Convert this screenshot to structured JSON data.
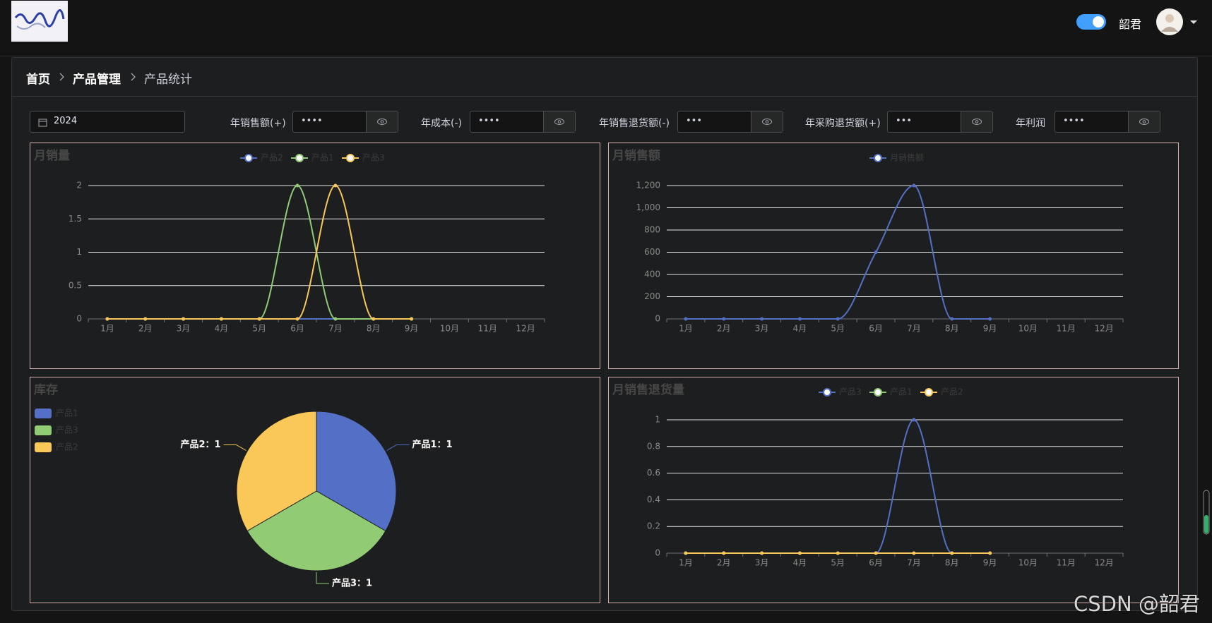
{
  "header": {
    "user": "韶君"
  },
  "breadcrumb": [
    "首页",
    "产品管理",
    "产品统计"
  ],
  "filters": {
    "year": "2024",
    "fields": [
      {
        "label": "年销售额(+)",
        "value": "••••"
      },
      {
        "label": "年成本(-)",
        "value": "••••"
      },
      {
        "label": "年销售退货额(-)",
        "value": "•••"
      },
      {
        "label": "年采购退货额(+)",
        "value": "•••"
      },
      {
        "label": "年利润",
        "value": "••••"
      }
    ]
  },
  "watermark": "CSDN @韶君",
  "chart_data": [
    {
      "type": "line",
      "title": "月销量",
      "smooth": true,
      "grid": true,
      "categories": [
        "1月",
        "2月",
        "3月",
        "4月",
        "5月",
        "6月",
        "7月",
        "8月",
        "9月",
        "10月",
        "11月",
        "12月"
      ],
      "series": [
        {
          "name": "产品2",
          "color": "#5470c6",
          "values": [
            0,
            0,
            0,
            0,
            0,
            0,
            0,
            0,
            0,
            null,
            null,
            null
          ]
        },
        {
          "name": "产品1",
          "color": "#91cc75",
          "values": [
            0,
            0,
            0,
            0,
            0,
            2,
            0,
            0,
            0,
            null,
            null,
            null
          ]
        },
        {
          "name": "产品3",
          "color": "#fac858",
          "values": [
            0,
            0,
            0,
            0,
            0,
            0,
            2,
            0,
            0,
            null,
            null,
            null
          ]
        }
      ],
      "ylim": [
        0,
        2
      ],
      "yticks": [
        0,
        0.5,
        1,
        1.5,
        2
      ]
    },
    {
      "type": "line",
      "title": "月销售额",
      "smooth": true,
      "grid": true,
      "categories": [
        "1月",
        "2月",
        "3月",
        "4月",
        "5月",
        "6月",
        "7月",
        "8月",
        "9月",
        "10月",
        "11月",
        "12月"
      ],
      "series": [
        {
          "name": "月销售额",
          "color": "#5470c6",
          "values": [
            0,
            0,
            0,
            0,
            0,
            600,
            1200,
            0,
            0,
            null,
            null,
            null
          ]
        }
      ],
      "ylim": [
        0,
        1200
      ],
      "yticks": [
        0,
        200,
        400,
        600,
        800,
        {
          "value": 1000,
          "label": "1,000"
        },
        {
          "value": 1200,
          "label": "1,200"
        }
      ]
    },
    {
      "type": "pie",
      "title": "库存",
      "legend": "top-left",
      "categories": [
        "产品1",
        "产品3",
        "产品2"
      ],
      "values": [
        1,
        1,
        1
      ],
      "value_labels": [
        "产品1：1",
        "产品3：1",
        "产品2：1"
      ],
      "colors": [
        "#5470c6",
        "#91cc75",
        "#fac858"
      ]
    },
    {
      "type": "line",
      "title": "月销售退货量",
      "smooth": true,
      "grid": true,
      "categories": [
        "1月",
        "2月",
        "3月",
        "4月",
        "5月",
        "6月",
        "7月",
        "8月",
        "9月",
        "10月",
        "11月",
        "12月"
      ],
      "series": [
        {
          "name": "产品3",
          "color": "#5470c6",
          "values": [
            0,
            0,
            0,
            0,
            0,
            0,
            1,
            0,
            0,
            null,
            null,
            null
          ]
        },
        {
          "name": "产品1",
          "color": "#91cc75",
          "values": [
            0,
            0,
            0,
            0,
            0,
            0,
            0,
            0,
            0,
            null,
            null,
            null
          ]
        },
        {
          "name": "产品2",
          "color": "#fac858",
          "values": [
            0,
            0,
            0,
            0,
            0,
            0,
            0,
            0,
            0,
            null,
            null,
            null
          ]
        }
      ],
      "ylim": [
        0,
        1
      ],
      "yticks": [
        0,
        0.2,
        0.4,
        0.6,
        0.8,
        1
      ]
    }
  ]
}
